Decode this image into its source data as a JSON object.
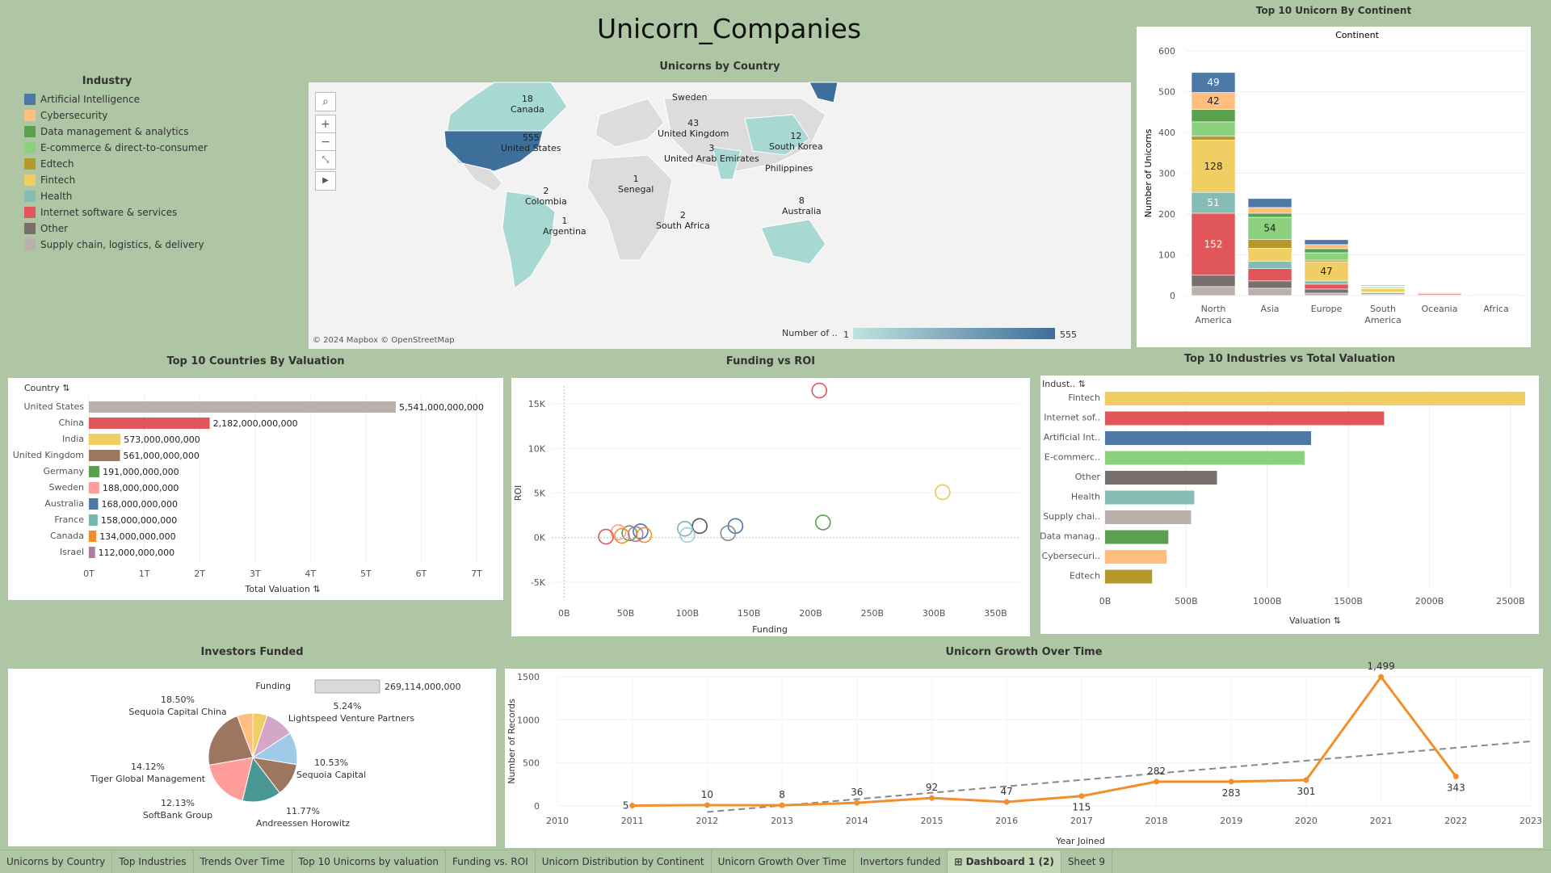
{
  "dashboard_title": "Unicorn_Companies",
  "legend": {
    "title": "Industry",
    "items": [
      {
        "label": "Artificial Intelligence",
        "color": "#4e79a7"
      },
      {
        "label": "Cybersecurity",
        "color": "#ffbe7d"
      },
      {
        "label": "Data management & analytics",
        "color": "#59a14f"
      },
      {
        "label": "E-commerce & direct-to-consumer",
        "color": "#8cd17d"
      },
      {
        "label": "Edtech",
        "color": "#b6992d"
      },
      {
        "label": "Fintech",
        "color": "#f1ce63"
      },
      {
        "label": "Health",
        "color": "#86bcb6"
      },
      {
        "label": "Internet software & services",
        "color": "#e15759"
      },
      {
        "label": "Other",
        "color": "#79706e"
      },
      {
        "label": "Supply chain, logistics, & delivery",
        "color": "#bab0ac"
      }
    ]
  },
  "map": {
    "title": "Unicorns by Country",
    "attribution": "© 2024 Mapbox © OpenStreetMap",
    "legend_label": "Number of ..",
    "legend_min": "1",
    "legend_max": "555",
    "labels": [
      {
        "value": "18",
        "name": "Canada"
      },
      {
        "value": "555",
        "name": "United States"
      },
      {
        "value": "",
        "name": "Sweden"
      },
      {
        "value": "43",
        "name": "United Kingdom"
      },
      {
        "value": "1",
        "name": "Senegal"
      },
      {
        "value": "3",
        "name": "United Arab Emirates"
      },
      {
        "value": "12",
        "name": "South Korea"
      },
      {
        "value": "",
        "name": "Philippines"
      },
      {
        "value": "2",
        "name": "Colombia"
      },
      {
        "value": "1",
        "name": "Argentina"
      },
      {
        "value": "2",
        "name": "South Africa"
      },
      {
        "value": "8",
        "name": "Australia"
      }
    ]
  },
  "tabs": [
    "Unicorns by Country",
    "Top Industries",
    "Trends Over Time",
    "Top 10 Unicorns by valuation",
    "Funding vs. ROI",
    "Unicorn Distribution by Continent",
    "Unicorn Growth Over Time",
    "Invertors funded",
    "Dashboard 1 (2)",
    "Sheet 9"
  ],
  "active_tab": "Dashboard 1 (2)",
  "chart_data": [
    {
      "id": "continent",
      "type": "bar",
      "stacked": true,
      "title": "Top 10 Unicorn By Continent",
      "subtitle": "Continent",
      "ylabel": "Number of Unicorns",
      "ylim": [
        0,
        600
      ],
      "yticks": [
        0,
        100,
        200,
        300,
        400,
        500,
        600
      ],
      "categories": [
        "North America",
        "Asia",
        "Europe",
        "South America",
        "Oceania",
        "Africa"
      ],
      "series": [
        {
          "name": "Supply chain, logistics, & delivery",
          "values": [
            22,
            18,
            6,
            2,
            0,
            0
          ]
        },
        {
          "name": "Other",
          "values": [
            28,
            18,
            10,
            2,
            1,
            0
          ]
        },
        {
          "name": "Internet software & services",
          "values": [
            152,
            30,
            12,
            3,
            3,
            1
          ]
        },
        {
          "name": "Health",
          "values": [
            51,
            18,
            8,
            2,
            2,
            0
          ]
        },
        {
          "name": "Fintech",
          "values": [
            128,
            32,
            47,
            8,
            2,
            2
          ]
        },
        {
          "name": "Edtech",
          "values": [
            10,
            22,
            4,
            1,
            0,
            0
          ]
        },
        {
          "name": "E-commerce & direct-to-consumer",
          "values": [
            35,
            54,
            18,
            3,
            1,
            1
          ]
        },
        {
          "name": "Data management & analytics",
          "values": [
            30,
            10,
            10,
            1,
            0,
            0
          ]
        },
        {
          "name": "Cybersecurity",
          "values": [
            42,
            14,
            10,
            1,
            1,
            0
          ]
        },
        {
          "name": "Artificial Intelligence",
          "values": [
            49,
            22,
            12,
            2,
            1,
            0
          ]
        }
      ],
      "bar_labels": [
        {
          "category": "North America",
          "series": "Artificial Intelligence",
          "text": "49"
        },
        {
          "category": "North America",
          "series": "Cybersecurity",
          "text": "42"
        },
        {
          "category": "North America",
          "series": "Fintech",
          "text": "128"
        },
        {
          "category": "North America",
          "series": "Health",
          "text": "51"
        },
        {
          "category": "North America",
          "series": "Internet software & services",
          "text": "152"
        },
        {
          "category": "Asia",
          "series": "E-commerce & direct-to-consumer",
          "text": "54"
        },
        {
          "category": "Europe",
          "series": "Fintech",
          "text": "47"
        }
      ]
    },
    {
      "id": "countries",
      "type": "bar",
      "orientation": "horizontal",
      "title": "Top 10 Countries By Valuation",
      "header": "Country",
      "xlabel": "Total Valuation",
      "xlim": [
        0,
        7000000000000
      ],
      "xticks": [
        "0T",
        "1T",
        "2T",
        "3T",
        "4T",
        "5T",
        "6T",
        "7T"
      ],
      "categories": [
        "United States",
        "China",
        "India",
        "United Kingdom",
        "Germany",
        "Sweden",
        "Australia",
        "France",
        "Canada",
        "Israel"
      ],
      "values": [
        5541000000000,
        2182000000000,
        573000000000,
        561000000000,
        191000000000,
        188000000000,
        168000000000,
        158000000000,
        134000000000,
        112000000000
      ],
      "labels": [
        "5,541,000,000,000",
        "2,182,000,000,000",
        "573,000,000,000",
        "561,000,000,000",
        "191,000,000,000",
        "188,000,000,000",
        "168,000,000,000",
        "158,000,000,000",
        "134,000,000,000",
        "112,000,000,000"
      ],
      "colors": [
        "#bab0ac",
        "#e15759",
        "#f1ce63",
        "#9d7660",
        "#59a14f",
        "#ff9d9a",
        "#4e79a7",
        "#76b7b2",
        "#f28e2b",
        "#b07aa1"
      ]
    },
    {
      "id": "funding_roi",
      "type": "scatter",
      "title": "Funding vs ROI",
      "xlabel": "Funding",
      "ylabel": "ROI",
      "xlim": [
        -10,
        370
      ],
      "ylim": [
        -7,
        17
      ],
      "xticks": [
        "0B",
        "50B",
        "100B",
        "150B",
        "200B",
        "250B",
        "300B",
        "350B"
      ],
      "yticks": [
        "-5K",
        "0K",
        "5K",
        "10K",
        "15K"
      ],
      "points": [
        {
          "x": 207,
          "y": 16.5,
          "color": "#e15759"
        },
        {
          "x": 307,
          "y": 5.1,
          "color": "#edc948"
        },
        {
          "x": 210,
          "y": 1.7,
          "color": "#59a14f"
        },
        {
          "x": 139,
          "y": 1.3,
          "color": "#4e79a7"
        },
        {
          "x": 110,
          "y": 1.3,
          "color": "#555555"
        },
        {
          "x": 133,
          "y": 0.5,
          "color": "#8a8a8a"
        },
        {
          "x": 98,
          "y": 1.0,
          "color": "#76b7b2"
        },
        {
          "x": 100,
          "y": 0.3,
          "color": "#a0cbe8"
        },
        {
          "x": 53,
          "y": 0.5,
          "color": "#59a14f"
        },
        {
          "x": 62,
          "y": 0.7,
          "color": "#4e79a7"
        },
        {
          "x": 65,
          "y": 0.3,
          "color": "#f28e2b"
        },
        {
          "x": 44,
          "y": 0.6,
          "color": "#ff9d9a"
        },
        {
          "x": 47,
          "y": 0.2,
          "color": "#f28e2b"
        },
        {
          "x": 34,
          "y": 0.1,
          "color": "#e15759"
        },
        {
          "x": 58,
          "y": 0.4,
          "color": "#b07aa1"
        }
      ]
    },
    {
      "id": "industries",
      "type": "bar",
      "orientation": "horizontal",
      "title": "Top 10 Industries vs Total Valuation",
      "header": "Indust..",
      "xlabel": "Valuation",
      "xlim": [
        0,
        2600
      ],
      "xticks": [
        "0B",
        "500B",
        "1000B",
        "1500B",
        "2000B",
        "2500B"
      ],
      "categories": [
        "Fintech",
        "Internet sof..",
        "Artificial Int..",
        "E-commerc..",
        "Other",
        "Health",
        "Supply chai..",
        "Data manag..",
        "Cybersecuri..",
        "Edtech"
      ],
      "values": [
        2590,
        1720,
        1270,
        1230,
        690,
        550,
        530,
        390,
        380,
        290
      ],
      "colors": [
        "#f1ce63",
        "#e15759",
        "#4e79a7",
        "#8cd17d",
        "#79706e",
        "#86bcb6",
        "#bab0ac",
        "#59a14f",
        "#ffbe7d",
        "#b6992d"
      ]
    },
    {
      "id": "investors",
      "type": "pie",
      "title": "Investors Funded",
      "legend_label": "Funding",
      "legend_value": "269,114,000,000",
      "slices": [
        {
          "name": "Lightspeed Venture Partners",
          "pct": 5.24,
          "label": "5.24%",
          "color": "#f1ce63"
        },
        {
          "name": "Sequoia Capital",
          "pct": 10.53,
          "label": "10.53%",
          "color": "#d4a6c8"
        },
        {
          "name": "Andreessen Horowitz",
          "pct": 11.77,
          "label": "11.77%",
          "color": "#a0cbe8"
        },
        {
          "name": "SoftBank Group",
          "pct": 12.13,
          "label": "12.13%",
          "color": "#9d7660"
        },
        {
          "name": "Tiger Global Management",
          "pct": 14.12,
          "label": "14.12%",
          "color": "#499894"
        },
        {
          "name": "Sequoia Capital China",
          "pct": 18.5,
          "label": "18.50%",
          "color": "#ff9d9a"
        },
        {
          "name": "",
          "pct": 22.0,
          "label": "",
          "color": "#9d7660"
        },
        {
          "name": "",
          "pct": 5.71,
          "label": "",
          "color": "#ffbe7d"
        }
      ]
    },
    {
      "id": "growth",
      "type": "line",
      "title": "Unicorn Growth Over Time",
      "xlabel": "Year Joined",
      "ylabel": "Number of Records",
      "xlim": [
        2010,
        2023
      ],
      "ylim": [
        0,
        1500
      ],
      "xticks": [
        2010,
        2011,
        2012,
        2013,
        2014,
        2015,
        2016,
        2017,
        2018,
        2019,
        2020,
        2021,
        2022,
        2023
      ],
      "yticks": [
        0,
        500,
        1000,
        1500
      ],
      "x": [
        2011,
        2012,
        2013,
        2014,
        2015,
        2016,
        2017,
        2018,
        2019,
        2020,
        2021,
        2022
      ],
      "y": [
        5,
        10,
        8,
        36,
        92,
        47,
        115,
        282,
        283,
        301,
        1499,
        343
      ],
      "labels": [
        "5",
        "10",
        "8",
        "36",
        "92",
        "47",
        "115",
        "282",
        "283",
        "301",
        "1,499",
        "343"
      ],
      "trend": {
        "from": [
          2012,
          -70
        ],
        "to": [
          2023,
          750
        ]
      }
    }
  ]
}
